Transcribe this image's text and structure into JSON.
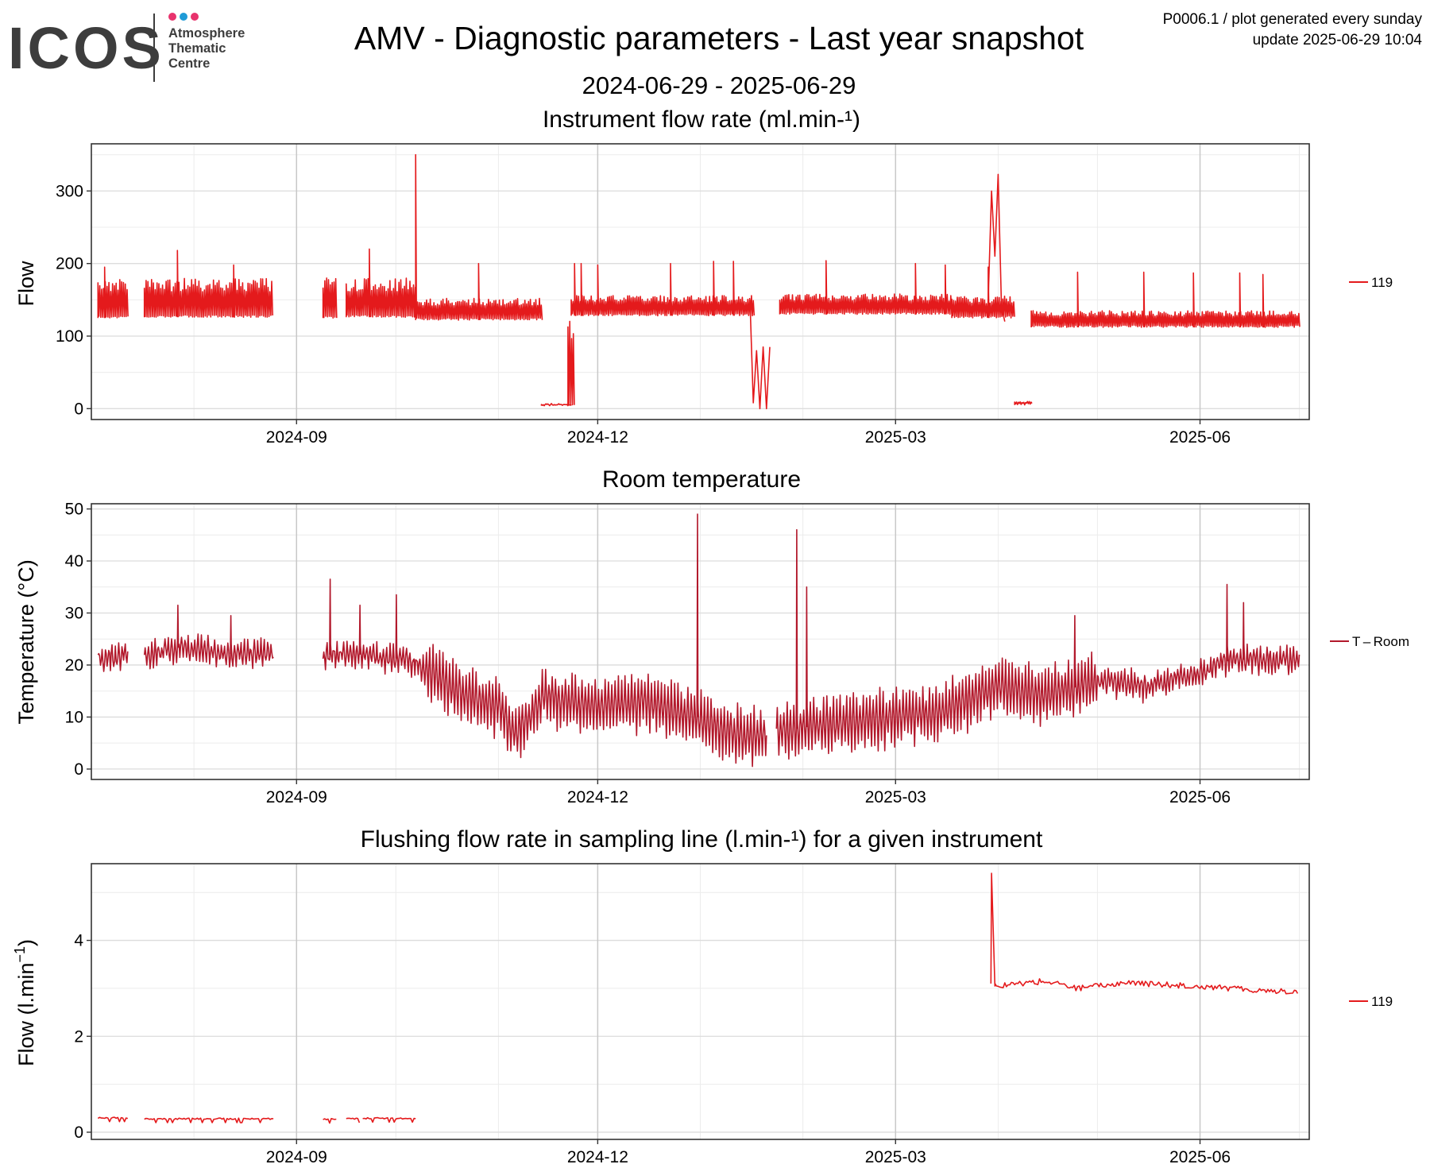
{
  "logo": {
    "word": "ICOS",
    "line1": "Atmosphere",
    "line2": "Thematic",
    "line3": "Centre",
    "dot_colors": [
      "#e8336d",
      "#1f9bd7",
      "#e8336d"
    ],
    "word_color": "#3d3d3d",
    "dark_color": "#3d3d3d"
  },
  "header": {
    "title": "AMV - Diagnostic parameters - Last year snapshot",
    "date_range": "2024-06-29 - 2025-06-29",
    "meta_line1": "P0006.1 / plot generated every sunday",
    "meta_line2": "update  2025-06-29 10:04"
  },
  "chart_data": [
    {
      "type": "line",
      "title": "Instrument flow rate (ml.min-¹)",
      "ylabel": "Flow",
      "ylim": [
        -15,
        365
      ],
      "yticks": [
        0,
        100,
        200,
        300
      ],
      "xlim": [
        "2024-07-01",
        "2025-07-04"
      ],
      "xticks": [
        "2024-09",
        "2024-12",
        "2025-03",
        "2025-06"
      ],
      "grid": true,
      "legend_position": "right",
      "series": [
        {
          "name": "119",
          "color": "#e41a1c",
          "segments": [
            {
              "from": "2024-07-03",
              "to": "2024-07-12",
              "base": 125,
              "top": 178,
              "spikes": [
                [
                  "2024-07-05",
                  195
                ]
              ]
            },
            {
              "from": "2024-07-17",
              "to": "2024-08-25",
              "base": 126,
              "top": 180,
              "spikes": [
                [
                  "2024-07-27",
                  218
                ],
                [
                  "2024-08-13",
                  198
                ]
              ]
            },
            {
              "from": "2024-09-09",
              "to": "2024-09-13",
              "base": 125,
              "top": 182,
              "spikes": []
            },
            {
              "from": "2024-09-16",
              "to": "2024-10-07",
              "base": 126,
              "top": 180,
              "spikes": [
                [
                  "2024-09-23",
                  220
                ],
                [
                  "2024-10-07",
                  350
                ]
              ]
            },
            {
              "from": "2024-10-07",
              "to": "2024-11-14",
              "base": 122,
              "top": 152,
              "spikes": [
                [
                  "2024-10-26",
                  200
                ]
              ]
            },
            {
              "from": "2024-11-14",
              "to": "2024-11-23",
              "base": 4,
              "top": 6,
              "spikes": []
            },
            {
              "from": "2024-11-23",
              "to": "2025-01-17",
              "base": 128,
              "top": 156,
              "spikes": [
                [
                  "2024-11-24",
                  200
                ],
                [
                  "2024-11-26",
                  200
                ],
                [
                  "2024-12-01",
                  198
                ],
                [
                  "2024-12-23",
                  200
                ],
                [
                  "2025-01-05",
                  203
                ],
                [
                  "2025-01-11",
                  203
                ]
              ]
            },
            {
              "from": "2024-11-22",
              "to": "2024-11-24",
              "base": 5,
              "top": 125,
              "spikes": []
            },
            {
              "from": "2025-01-25",
              "to": "2025-03-18",
              "base": 130,
              "top": 158,
              "spikes": [
                [
                  "2025-02-08",
                  204
                ],
                [
                  "2025-03-07",
                  200
                ],
                [
                  "2025-03-16",
                  198
                ]
              ]
            },
            {
              "from": "2025-03-18",
              "to": "2025-04-06",
              "base": 125,
              "top": 155,
              "spikes": [
                [
                  "2025-03-29",
                  195
                ]
              ]
            },
            {
              "from": "2025-04-06",
              "to": "2025-04-11",
              "base": 5,
              "top": 10,
              "spikes": []
            },
            {
              "from": "2025-04-11",
              "to": "2025-07-01",
              "base": 112,
              "top": 135,
              "spikes": [
                [
                  "2025-04-25",
                  188
                ],
                [
                  "2025-05-15",
                  188
                ],
                [
                  "2025-05-30",
                  187
                ],
                [
                  "2025-06-13",
                  187
                ],
                [
                  "2025-06-20",
                  185
                ]
              ]
            }
          ],
          "events": [
            {
              "x": [
                "2025-01-16",
                "2025-01-17",
                "2025-01-18",
                "2025-01-19",
                "2025-01-20",
                "2025-01-21",
                "2025-01-22"
              ],
              "y": [
                150,
                8,
                80,
                0,
                85,
                0,
                85
              ]
            },
            {
              "x": [
                "2025-03-29",
                "2025-03-30",
                "2025-03-31",
                "2025-04-01",
                "2025-04-02",
                "2025-04-03"
              ],
              "y": [
                150,
                300,
                210,
                323,
                140,
                120
              ]
            }
          ]
        }
      ]
    },
    {
      "type": "line",
      "title": "Room temperature",
      "ylabel": "Temperature (°C)",
      "ylim": [
        -2,
        51
      ],
      "yticks": [
        0,
        10,
        20,
        30,
        40,
        50
      ],
      "xlim": [
        "2024-07-01",
        "2025-07-04"
      ],
      "xticks": [
        "2024-09",
        "2024-12",
        "2025-03",
        "2025-06"
      ],
      "grid": true,
      "legend_position": "right",
      "series": [
        {
          "name": "T – Room",
          "color": "#b2182b",
          "trend": [
            [
              "2024-07-03",
              21
            ],
            [
              "2024-07-12",
              22
            ],
            [
              "2024-07-17",
              21.5
            ],
            [
              "2024-07-28",
              23.5
            ],
            [
              "2024-08-10",
              22
            ],
            [
              "2024-08-25",
              22.5
            ],
            [
              "2024-09-09",
              22
            ],
            [
              "2024-09-20",
              22
            ],
            [
              "2024-10-05",
              21
            ],
            [
              "2024-10-20",
              15
            ],
            [
              "2024-11-01",
              12
            ],
            [
              "2024-11-06",
              7
            ],
            [
              "2024-11-15",
              14
            ],
            [
              "2024-12-01",
              12
            ],
            [
              "2024-12-15",
              13
            ],
            [
              "2024-12-31",
              10
            ],
            [
              "2025-01-15",
              6
            ],
            [
              "2025-02-01",
              8
            ],
            [
              "2025-02-15",
              9
            ],
            [
              "2025-03-01",
              10
            ],
            [
              "2025-03-15",
              11
            ],
            [
              "2025-04-01",
              16
            ],
            [
              "2025-04-15",
              14
            ],
            [
              "2025-05-01",
              17
            ],
            [
              "2025-05-15",
              16
            ],
            [
              "2025-05-30",
              18
            ],
            [
              "2025-06-10",
              21
            ],
            [
              "2025-07-01",
              21
            ]
          ],
          "gaps": [
            [
              "2024-07-12",
              "2024-07-17"
            ],
            [
              "2024-08-25",
              "2024-09-09"
            ],
            [
              "2025-01-21",
              "2025-01-24"
            ]
          ],
          "spikes": [
            [
              "2024-09-11",
              36.5
            ],
            [
              "2024-09-20",
              31.5
            ],
            [
              "2024-10-01",
              33.5
            ],
            [
              "2024-07-27",
              31.5
            ],
            [
              "2024-08-12",
              29.5
            ],
            [
              "2024-12-31",
              49
            ],
            [
              "2025-01-30",
              46
            ],
            [
              "2025-02-02",
              35
            ],
            [
              "2025-04-24",
              29.5
            ],
            [
              "2025-06-09",
              35.5
            ],
            [
              "2025-06-14",
              32
            ]
          ]
        }
      ]
    },
    {
      "type": "line",
      "title": "Flushing flow rate in sampling line (l.min-¹) for a given instrument",
      "ylabel": "Flow (l.min",
      "ylabel_sup": "−1",
      "ylabel_close": ")",
      "ylim": [
        -0.15,
        5.6
      ],
      "yticks": [
        0,
        2,
        4
      ],
      "xlim": [
        "2024-07-01",
        "2025-07-04"
      ],
      "xticks": [
        "2024-09",
        "2024-12",
        "2025-03",
        "2025-06"
      ],
      "grid": true,
      "legend_position": "right",
      "series": [
        {
          "name": "119",
          "color": "#e41a1c",
          "segments": [
            {
              "from": "2024-07-03",
              "to": "2024-07-12",
              "level": 0.3
            },
            {
              "from": "2024-07-17",
              "to": "2024-08-25",
              "level": 0.28
            },
            {
              "from": "2024-09-09",
              "to": "2024-09-13",
              "level": 0.27
            },
            {
              "from": "2024-09-16",
              "to": "2024-09-20",
              "level": 0.28
            },
            {
              "from": "2024-09-21",
              "to": "2024-10-07",
              "level": 0.29
            }
          ],
          "trend": [
            [
              "2025-03-31",
              3.05
            ],
            [
              "2025-04-15",
              3.15
            ],
            [
              "2025-04-25",
              3.0
            ],
            [
              "2025-05-10",
              3.12
            ],
            [
              "2025-05-20",
              3.08
            ],
            [
              "2025-05-31",
              3.05
            ],
            [
              "2025-06-15",
              2.98
            ],
            [
              "2025-07-01",
              2.92
            ]
          ],
          "peak": [
            "2025-03-30",
            5.4
          ]
        }
      ]
    }
  ]
}
